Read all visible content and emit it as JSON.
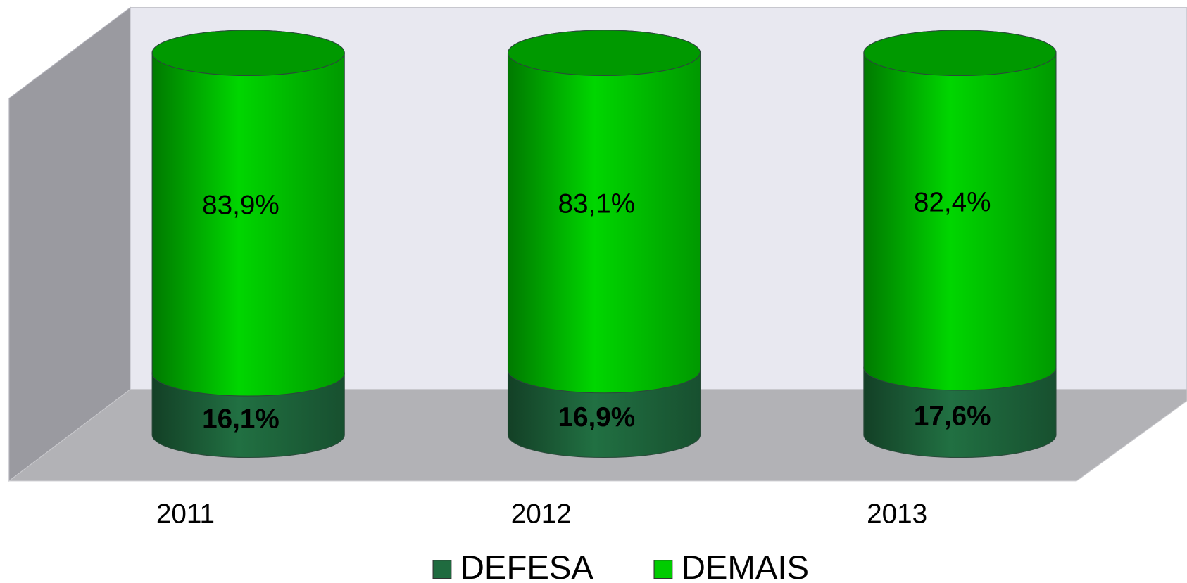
{
  "chart_data": {
    "type": "bar",
    "stacked": true,
    "categories": [
      "2011",
      "2012",
      "2013"
    ],
    "ylim": [
      0,
      100
    ],
    "series": [
      {
        "name": "DEFESA",
        "color": "#1f6b3f",
        "values": [
          16.1,
          16.9,
          17.6
        ],
        "value_labels": [
          "16,1%",
          "16,9%",
          "17,6%"
        ]
      },
      {
        "name": "DEMAIS",
        "color": "#00cc00",
        "values": [
          83.9,
          83.1,
          82.4
        ],
        "value_labels": [
          "83,9%",
          "83,1%",
          "82,4%"
        ]
      }
    ],
    "legend": "bottom"
  }
}
